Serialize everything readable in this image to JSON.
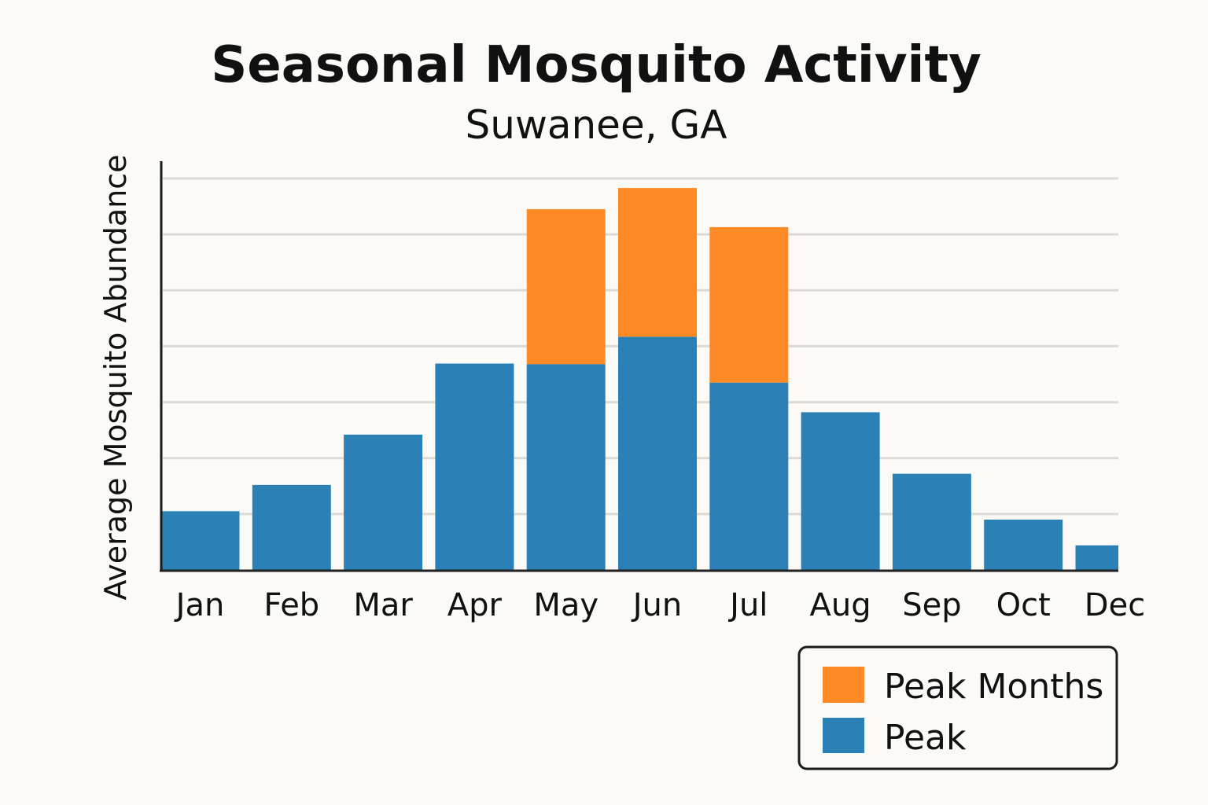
{
  "chart_data": {
    "type": "bar",
    "stacked": true,
    "title": "Seasonal Mosquito Activity",
    "subtitle": "Suwanee, GA",
    "xlabel": "",
    "ylabel": "Average Mosquito Abundance",
    "categories": [
      "Jan",
      "Feb",
      "Mar",
      "Apr",
      "May",
      "Jun",
      "Jul",
      "Aug",
      "Sep",
      "Oct",
      "Dec"
    ],
    "series": [
      {
        "name": "Peak",
        "color": "#2b81b6",
        "values": [
          1.05,
          1.52,
          2.42,
          3.69,
          3.68,
          4.17,
          3.35,
          2.82,
          1.72,
          0.9,
          0.44
        ]
      },
      {
        "name": "Peak Months",
        "color": "#fd8a24",
        "values": [
          0,
          0,
          0,
          0,
          2.77,
          2.66,
          2.78,
          0,
          0,
          0,
          0
        ]
      }
    ],
    "ylim": [
      0,
      7.3
    ],
    "gridlines": [
      1,
      2,
      3,
      4,
      5,
      6,
      7
    ],
    "grid": true,
    "y_tick_labels": false,
    "legend": {
      "placement": "bottom-right",
      "entries": [
        "Peak Months",
        "Peak"
      ]
    }
  }
}
